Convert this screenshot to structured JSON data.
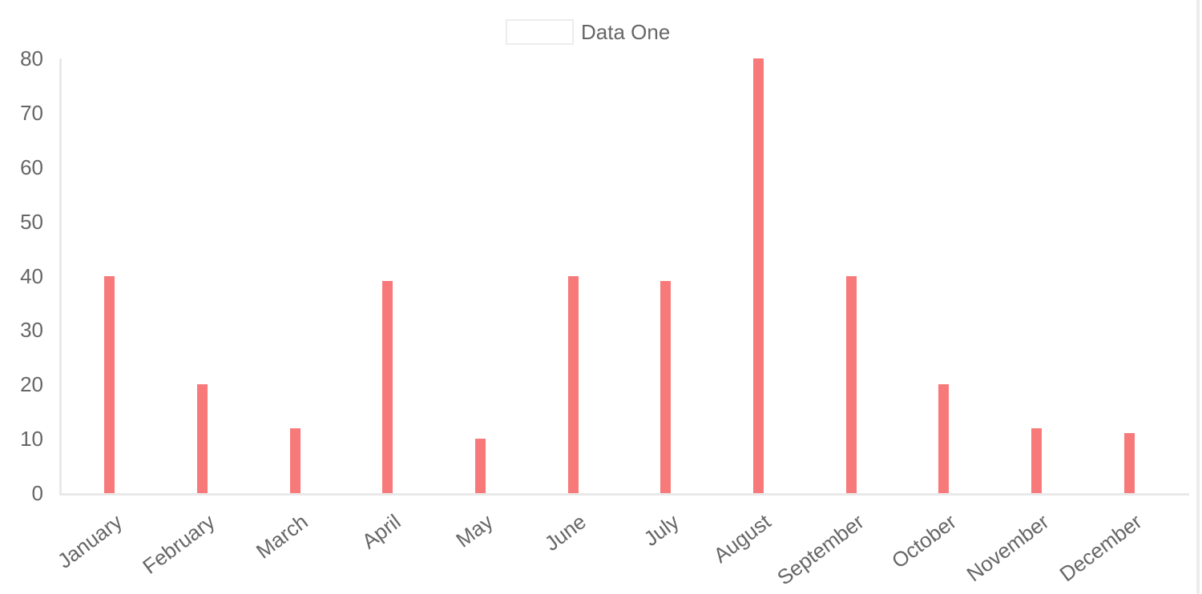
{
  "legend": {
    "label": "Data One"
  },
  "colors": {
    "bar": "#f87979",
    "axis_line": "#e9e9e9",
    "tick_text": "#666666",
    "legend_swatch_border": "#ededed",
    "scrollbar_track": "#ececec",
    "background": "#ffffff"
  },
  "chart_data": {
    "type": "bar",
    "title": "",
    "xlabel": "",
    "ylabel": "",
    "categories": [
      "January",
      "February",
      "March",
      "April",
      "May",
      "June",
      "July",
      "August",
      "September",
      "October",
      "November",
      "December"
    ],
    "series": [
      {
        "name": "Data One",
        "color": "#f87979",
        "values": [
          40,
          20,
          12,
          39,
          10,
          40,
          39,
          80,
          40,
          20,
          12,
          11
        ]
      }
    ],
    "ylim": [
      0,
      80
    ],
    "yticks": [
      0,
      10,
      20,
      30,
      40,
      50,
      60,
      70,
      80
    ],
    "grid": false,
    "legend_position": "top",
    "x_tick_rotation_deg": 37
  }
}
